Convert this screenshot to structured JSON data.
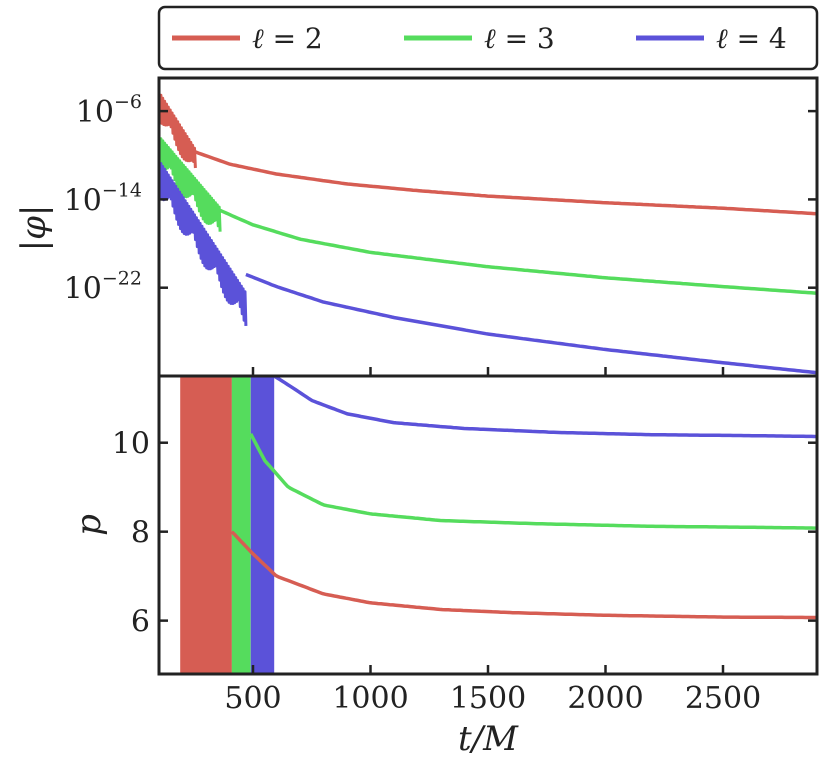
{
  "chart_data": [
    {
      "type": "line",
      "panel": "top",
      "ylabel": "|φ|",
      "yscale": "log",
      "xlim": [
        100,
        2900
      ],
      "ylim_exp": [
        -30,
        -3
      ],
      "ytick_labels": [
        {
          "base": "10",
          "exp": "−6",
          "value_exp": -6
        },
        {
          "base": "10",
          "exp": "−14",
          "value_exp": -14
        },
        {
          "base": "10",
          "exp": "−22",
          "value_exp": -22
        }
      ],
      "series": [
        {
          "name": "ℓ = 2",
          "color": "#d65d53",
          "ringdown": {
            "t_start": 100,
            "t_end": 255,
            "exp_start": -4.3,
            "exp_end": -9.5,
            "amplitude_exp": 2.5
          },
          "tail": {
            "t": [
              255,
              400,
              600,
              900,
              1200,
              1500,
              2000,
              2500,
              2900
            ],
            "log10_phi": [
              -9.7,
              -10.8,
              -11.7,
              -12.6,
              -13.2,
              -13.7,
              -14.3,
              -14.8,
              -15.3
            ]
          }
        },
        {
          "name": "ℓ = 3",
          "color": "#55dc5d",
          "ringdown": {
            "t_start": 100,
            "t_end": 360,
            "exp_start": -8.3,
            "exp_end": -14.8,
            "amplitude_exp": 2.8
          },
          "tail": {
            "t": [
              360,
              500,
              700,
              1000,
              1500,
              2000,
              2500,
              2900
            ],
            "log10_phi": [
              -15.0,
              -16.3,
              -17.6,
              -18.8,
              -20.1,
              -21.1,
              -21.9,
              -22.5
            ]
          }
        },
        {
          "name": "ℓ = 4",
          "color": "#5b52d9",
          "ringdown": {
            "t_start": 100,
            "t_end": 470,
            "exp_start": -10.5,
            "exp_end": -22.5,
            "amplitude_exp": 3.2
          },
          "tail": {
            "t": [
              470,
              600,
              800,
              1100,
              1500,
              2000,
              2500,
              2900
            ],
            "log10_phi": [
              -20.8,
              -21.9,
              -23.3,
              -24.7,
              -26.2,
              -27.6,
              -28.8,
              -29.7
            ]
          }
        }
      ]
    },
    {
      "type": "line",
      "panel": "bottom",
      "xlabel": "t/M",
      "ylabel": "p",
      "xlim": [
        100,
        2900
      ],
      "ylim": [
        4.8,
        11.5
      ],
      "yticks": [
        6,
        8,
        10
      ],
      "xticks": [
        500,
        1000,
        1500,
        2000,
        2500
      ],
      "series": [
        {
          "name": "ℓ = 2",
          "color": "#d65d53",
          "band": [
            190,
            410
          ],
          "curve": {
            "t": [
              410,
              500,
              600,
              800,
              1000,
              1300,
              1600,
              2000,
              2500,
              2900
            ],
            "p": [
              8.0,
              7.5,
              7.0,
              6.6,
              6.4,
              6.25,
              6.18,
              6.12,
              6.08,
              6.07
            ]
          }
        },
        {
          "name": "ℓ = 3",
          "color": "#55dc5d",
          "band": [
            410,
            490
          ],
          "curve": {
            "t": [
              490,
              550,
              650,
              800,
              1000,
              1300,
              1700,
              2200,
              2600,
              2900
            ],
            "p": [
              10.2,
              9.6,
              9.0,
              8.6,
              8.4,
              8.25,
              8.18,
              8.12,
              8.1,
              8.08
            ]
          }
        },
        {
          "name": "ℓ = 4",
          "color": "#5b52d9",
          "band": [
            490,
            590
          ],
          "curve": {
            "t": [
              590,
              650,
              750,
              900,
              1100,
              1400,
              1800,
              2200,
              2600,
              2900
            ],
            "p": [
              11.5,
              11.3,
              10.95,
              10.65,
              10.45,
              10.32,
              10.23,
              10.18,
              10.16,
              10.14
            ]
          }
        }
      ]
    }
  ],
  "legend": {
    "position": "top",
    "items": [
      {
        "prefix": "ℓ",
        "text": " = 2",
        "color": "#d65d53"
      },
      {
        "prefix": "ℓ",
        "text": " = 3",
        "color": "#55dc5d"
      },
      {
        "prefix": "ℓ",
        "text": " = 4",
        "color": "#5b52d9"
      }
    ]
  },
  "xtick_labels": [
    "500",
    "1000",
    "1500",
    "2000",
    "2500"
  ],
  "ytick_labels_bottom": [
    "6",
    "8",
    "10"
  ]
}
